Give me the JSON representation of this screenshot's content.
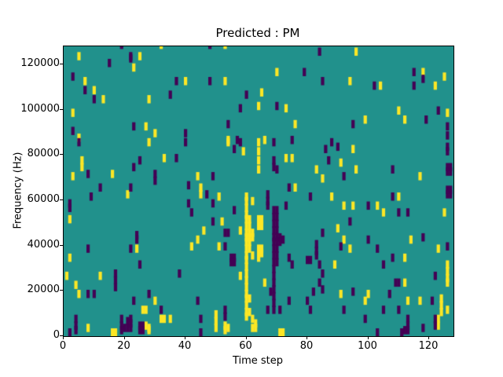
{
  "chart_data": {
    "type": "heatmap",
    "title": "Predicted : PM",
    "xlabel": "Time step",
    "ylabel": "Frequency (Hz)",
    "x_range": [
      0,
      128
    ],
    "y_range": [
      0,
      128000
    ],
    "x_ticks": [
      0,
      20,
      40,
      60,
      80,
      100,
      120
    ],
    "y_ticks": [
      0,
      20000,
      40000,
      60000,
      80000,
      100000,
      120000
    ],
    "grid": false,
    "legend": "none",
    "colors": {
      "background_value": "#21918c",
      "high_value": "#fde725",
      "low_value": "#440154",
      "axis": "#000000"
    },
    "cell_units": "[time_step, frequency_kHz]",
    "yellow_cells": [
      [
        5,
        122
      ],
      [
        25,
        122
      ],
      [
        23,
        117
      ],
      [
        7,
        111
      ],
      [
        10,
        107
      ],
      [
        13,
        103
      ],
      [
        28,
        103
      ],
      [
        3,
        97
      ],
      [
        27,
        91
      ],
      [
        30,
        88
      ],
      [
        5,
        86
      ],
      [
        32,
        127
      ],
      [
        53,
        127
      ],
      [
        40,
        111
      ],
      [
        53,
        111
      ],
      [
        54,
        85
      ],
      [
        70,
        115
      ],
      [
        94,
        111
      ],
      [
        65,
        106
      ],
      [
        64,
        100
      ],
      [
        73,
        99
      ],
      [
        76,
        92
      ],
      [
        66,
        85
      ],
      [
        96,
        124
      ],
      [
        118,
        115
      ],
      [
        125,
        113
      ],
      [
        104,
        109
      ],
      [
        122,
        109
      ],
      [
        110,
        98
      ],
      [
        126,
        97
      ],
      [
        99,
        94
      ],
      [
        112,
        94
      ],
      [
        28,
        84
      ],
      [
        6,
        76
      ],
      [
        6,
        73
      ],
      [
        3,
        69
      ],
      [
        16,
        70
      ],
      [
        21,
        61
      ],
      [
        2,
        50
      ],
      [
        54,
        84
      ],
      [
        59,
        80
      ],
      [
        33,
        77
      ],
      [
        44,
        69
      ],
      [
        45,
        64
      ],
      [
        45,
        61
      ],
      [
        51,
        60
      ],
      [
        52,
        49
      ],
      [
        46,
        45
      ],
      [
        58,
        45
      ],
      [
        64,
        84
      ],
      [
        64,
        80
      ],
      [
        64,
        76
      ],
      [
        64,
        72
      ],
      [
        73,
        77
      ],
      [
        75,
        77
      ],
      [
        95,
        81
      ],
      [
        91,
        75
      ],
      [
        83,
        72
      ],
      [
        85,
        68
      ],
      [
        76,
        64
      ],
      [
        88,
        60
      ],
      [
        92,
        56
      ],
      [
        95,
        56
      ],
      [
        90,
        46
      ],
      [
        96,
        72
      ],
      [
        117,
        69
      ],
      [
        110,
        60
      ],
      [
        103,
        56
      ],
      [
        105,
        53
      ],
      [
        125,
        53
      ],
      [
        24,
        37
      ],
      [
        2,
        33
      ],
      [
        1,
        25
      ],
      [
        12,
        25
      ],
      [
        4,
        21
      ],
      [
        5,
        17
      ],
      [
        30,
        14
      ],
      [
        26,
        10
      ],
      [
        27,
        10
      ],
      [
        8,
        2
      ],
      [
        27,
        3
      ],
      [
        28,
        2
      ],
      [
        28,
        1
      ],
      [
        44,
        41
      ],
      [
        42,
        38
      ],
      [
        51,
        38
      ],
      [
        58,
        25
      ],
      [
        32,
        6
      ],
      [
        33,
        6
      ],
      [
        35,
        6
      ],
      [
        50,
        8
      ],
      [
        50,
        5
      ],
      [
        50,
        2
      ],
      [
        53,
        3
      ],
      [
        53,
        1
      ],
      [
        54,
        2
      ],
      [
        64,
        37
      ],
      [
        65,
        37
      ],
      [
        64,
        35
      ],
      [
        65,
        35
      ],
      [
        64,
        33
      ],
      [
        92,
        41
      ],
      [
        94,
        37
      ],
      [
        89,
        30
      ],
      [
        66,
        22
      ],
      [
        91,
        17
      ],
      [
        114,
        41
      ],
      [
        123,
        37
      ],
      [
        112,
        33
      ],
      [
        126,
        30
      ],
      [
        126,
        27
      ],
      [
        126,
        24
      ],
      [
        126,
        22
      ],
      [
        112,
        22
      ],
      [
        100,
        17
      ],
      [
        99,
        14
      ],
      [
        113,
        14
      ],
      [
        117,
        14
      ],
      [
        124,
        15
      ],
      [
        124,
        12
      ],
      [
        124,
        9
      ],
      [
        126,
        10
      ],
      [
        123,
        6
      ],
      [
        123,
        3
      ],
      [
        16,
        0
      ],
      [
        17,
        0
      ],
      [
        71,
        0
      ],
      [
        72,
        0
      ],
      [
        60,
        60
      ],
      [
        60,
        58
      ],
      [
        62,
        58
      ],
      [
        60,
        55
      ],
      [
        60,
        52
      ],
      [
        61,
        50
      ],
      [
        60,
        50
      ],
      [
        64,
        50
      ],
      [
        65,
        50
      ],
      [
        60,
        47
      ],
      [
        61,
        47
      ],
      [
        64,
        47
      ],
      [
        65,
        47
      ],
      [
        60,
        44
      ],
      [
        61,
        44
      ],
      [
        62,
        44
      ],
      [
        60,
        42
      ],
      [
        61,
        42
      ],
      [
        62,
        42
      ],
      [
        60,
        40
      ],
      [
        61,
        40
      ],
      [
        60,
        37
      ],
      [
        61,
        37
      ],
      [
        60,
        34
      ],
      [
        62,
        34
      ],
      [
        60,
        32
      ],
      [
        60,
        29
      ],
      [
        60,
        26
      ],
      [
        60,
        23
      ],
      [
        60,
        20
      ],
      [
        60,
        17
      ],
      [
        60,
        15
      ],
      [
        61,
        15
      ],
      [
        60,
        12
      ],
      [
        60,
        9
      ],
      [
        61,
        9
      ],
      [
        60,
        7
      ],
      [
        62,
        6
      ],
      [
        63,
        4
      ],
      [
        62,
        2
      ],
      [
        63,
        2
      ]
    ],
    "purple_cells": [
      [
        19,
        127
      ],
      [
        22,
        122
      ],
      [
        22,
        121
      ],
      [
        15,
        119
      ],
      [
        3,
        113
      ],
      [
        7,
        107
      ],
      [
        10,
        103
      ],
      [
        23,
        91
      ],
      [
        3,
        89
      ],
      [
        48,
        127
      ],
      [
        37,
        111
      ],
      [
        48,
        111
      ],
      [
        35,
        105
      ],
      [
        60,
        105
      ],
      [
        58,
        99
      ],
      [
        54,
        92
      ],
      [
        40,
        88
      ],
      [
        57,
        85
      ],
      [
        84,
        124
      ],
      [
        79,
        115
      ],
      [
        85,
        111
      ],
      [
        70,
        100
      ],
      [
        95,
        92
      ],
      [
        75,
        85
      ],
      [
        115,
        115
      ],
      [
        118,
        112
      ],
      [
        102,
        109
      ],
      [
        115,
        109
      ],
      [
        123,
        98
      ],
      [
        119,
        94
      ],
      [
        126,
        91
      ],
      [
        126,
        87
      ],
      [
        5,
        84
      ],
      [
        25,
        76
      ],
      [
        23,
        73
      ],
      [
        8,
        70
      ],
      [
        30,
        70
      ],
      [
        30,
        67
      ],
      [
        12,
        64
      ],
      [
        22,
        64
      ],
      [
        9,
        60
      ],
      [
        2,
        57
      ],
      [
        2,
        55
      ],
      [
        24,
        43
      ],
      [
        40,
        84
      ],
      [
        58,
        84
      ],
      [
        56,
        81
      ],
      [
        37,
        77
      ],
      [
        49,
        69
      ],
      [
        41,
        65
      ],
      [
        47,
        61
      ],
      [
        41,
        57
      ],
      [
        49,
        57
      ],
      [
        42,
        53
      ],
      [
        56,
        54
      ],
      [
        49,
        49
      ],
      [
        53,
        44
      ],
      [
        54,
        44
      ],
      [
        69,
        84
      ],
      [
        88,
        84
      ],
      [
        69,
        76
      ],
      [
        69,
        73
      ],
      [
        70,
        72
      ],
      [
        86,
        81
      ],
      [
        90,
        82
      ],
      [
        87,
        76
      ],
      [
        92,
        69
      ],
      [
        74,
        64
      ],
      [
        67,
        61
      ],
      [
        67,
        58
      ],
      [
        67,
        56
      ],
      [
        81,
        60
      ],
      [
        73,
        56
      ],
      [
        94,
        49
      ],
      [
        85,
        44
      ],
      [
        69,
        54
      ],
      [
        70,
        54
      ],
      [
        69,
        51
      ],
      [
        70,
        51
      ],
      [
        69,
        48
      ],
      [
        70,
        48
      ],
      [
        69,
        45
      ],
      [
        70,
        45
      ],
      [
        126,
        82
      ],
      [
        126,
        80
      ],
      [
        108,
        72
      ],
      [
        126,
        73
      ],
      [
        127,
        73
      ],
      [
        126,
        71
      ],
      [
        127,
        71
      ],
      [
        126,
        63
      ],
      [
        127,
        63
      ],
      [
        126,
        61
      ],
      [
        127,
        61
      ],
      [
        108,
        60
      ],
      [
        100,
        56
      ],
      [
        110,
        53
      ],
      [
        113,
        53
      ],
      [
        24,
        41
      ],
      [
        8,
        37
      ],
      [
        22,
        37
      ],
      [
        25,
        30
      ],
      [
        17,
        26
      ],
      [
        17,
        23
      ],
      [
        17,
        20
      ],
      [
        8,
        17
      ],
      [
        10,
        17
      ],
      [
        28,
        17
      ],
      [
        23,
        14
      ],
      [
        4,
        6
      ],
      [
        4,
        3
      ],
      [
        4,
        1
      ],
      [
        19,
        6
      ],
      [
        19,
        3
      ],
      [
        19,
        1
      ],
      [
        21,
        5
      ],
      [
        21,
        2
      ],
      [
        25,
        3
      ],
      [
        26,
        3
      ],
      [
        25,
        1
      ],
      [
        26,
        1
      ],
      [
        20,
        2
      ],
      [
        22,
        6
      ],
      [
        22,
        4
      ],
      [
        22,
        2
      ],
      [
        53,
        38
      ],
      [
        55,
        33
      ],
      [
        56,
        33
      ],
      [
        55,
        31
      ],
      [
        56,
        31
      ],
      [
        38,
        26
      ],
      [
        44,
        14
      ],
      [
        32,
        10
      ],
      [
        45,
        6
      ],
      [
        53,
        10
      ],
      [
        53,
        7
      ],
      [
        69,
        42
      ],
      [
        70,
        42
      ],
      [
        71,
        42
      ],
      [
        72,
        41
      ],
      [
        69,
        40
      ],
      [
        70,
        40
      ],
      [
        71,
        40
      ],
      [
        69,
        37
      ],
      [
        70,
        37
      ],
      [
        69,
        34
      ],
      [
        70,
        34
      ],
      [
        69,
        31
      ],
      [
        70,
        31
      ],
      [
        69,
        28
      ],
      [
        69,
        25
      ],
      [
        69,
        22
      ],
      [
        69,
        19
      ],
      [
        69,
        16
      ],
      [
        69,
        13
      ],
      [
        69,
        10
      ],
      [
        71,
        10
      ],
      [
        67,
        10
      ],
      [
        74,
        33
      ],
      [
        75,
        30
      ],
      [
        83,
        39
      ],
      [
        83,
        36
      ],
      [
        83,
        34
      ],
      [
        80,
        32
      ],
      [
        81,
        32
      ],
      [
        84,
        30
      ],
      [
        85,
        26
      ],
      [
        84,
        22
      ],
      [
        68,
        18
      ],
      [
        82,
        18
      ],
      [
        85,
        19
      ],
      [
        95,
        18
      ],
      [
        74,
        14
      ],
      [
        80,
        14
      ],
      [
        81,
        10
      ],
      [
        91,
        38
      ],
      [
        92,
        10
      ],
      [
        100,
        41
      ],
      [
        118,
        42
      ],
      [
        103,
        37
      ],
      [
        126,
        38
      ],
      [
        108,
        33
      ],
      [
        105,
        30
      ],
      [
        122,
        25
      ],
      [
        109,
        22
      ],
      [
        110,
        22
      ],
      [
        107,
        17
      ],
      [
        121,
        14
      ],
      [
        105,
        10
      ],
      [
        110,
        10
      ],
      [
        113,
        6
      ],
      [
        113,
        3
      ],
      [
        113,
        1
      ],
      [
        99,
        6
      ],
      [
        122,
        6
      ],
      [
        122,
        3
      ],
      [
        118,
        2
      ],
      [
        112,
        1
      ],
      [
        2,
        0
      ],
      [
        45,
        0
      ],
      [
        103,
        0
      ],
      [
        111,
        0
      ]
    ]
  }
}
